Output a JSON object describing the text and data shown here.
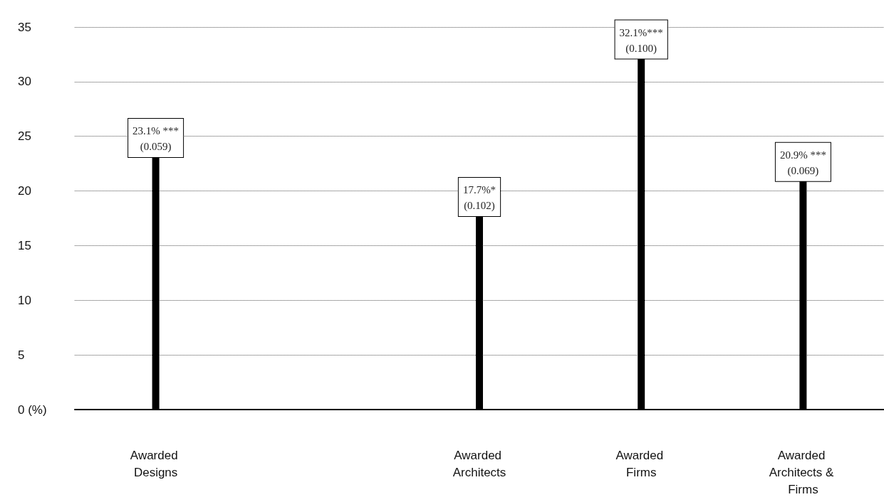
{
  "chart_data": {
    "type": "bar",
    "categories": [
      "Awarded Designs",
      null,
      "Awarded Architects",
      "Awarded Firms",
      "Awarded Architects & Firms"
    ],
    "values": [
      23.1,
      null,
      17.7,
      32.1,
      20.9
    ],
    "value_labels": [
      "23.1% ***\n(0.059)",
      null,
      "17.7%*\n(0.102)",
      "32.1%***\n(0.100)",
      "20.9% ***\n(0.069)"
    ],
    "color": "#000000",
    "ylim": [
      0,
      35
    ],
    "yticks": [
      {
        "value": 0,
        "label": "0 (%)"
      },
      5,
      10,
      15,
      20,
      25,
      30,
      35
    ],
    "grid": "y"
  }
}
